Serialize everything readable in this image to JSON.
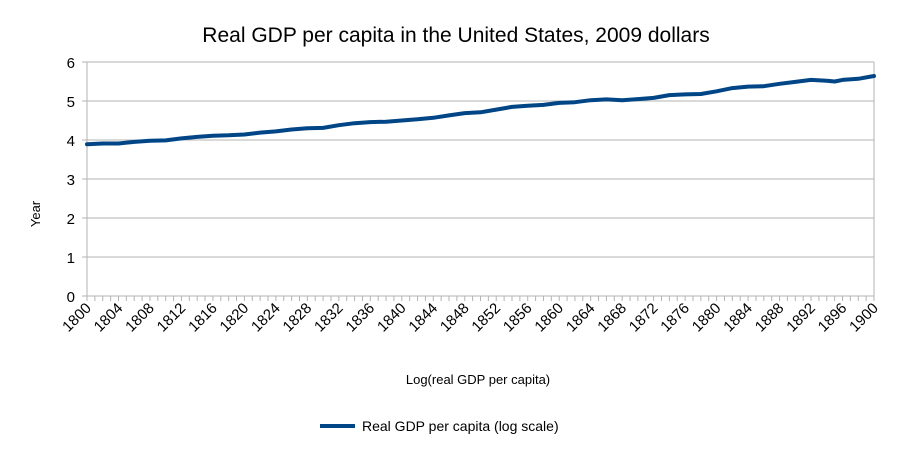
{
  "chart_data": {
    "type": "line",
    "title": "Real GDP per capita in the United States, 2009 dollars",
    "xlabel": "Log(real GDP per capita)",
    "ylabel": "Year",
    "xlim": [
      1800,
      1900
    ],
    "ylim": [
      0,
      6
    ],
    "yticks": [
      "0",
      "1",
      "2",
      "3",
      "4",
      "5",
      "6"
    ],
    "xticks": [
      "1800",
      "1804",
      "1808",
      "1812",
      "1816",
      "1820",
      "1824",
      "1828",
      "1832",
      "1836",
      "1840",
      "1844",
      "1848",
      "1852",
      "1856",
      "1860",
      "1864",
      "1868",
      "1872",
      "1876",
      "1880",
      "1884",
      "1888",
      "1892",
      "1896",
      "1900"
    ],
    "grid": true,
    "legend": "bottom",
    "series": [
      {
        "name": "Real GDP per capita (log scale)",
        "color": "#004586",
        "x": [
          1800,
          1802,
          1804,
          1806,
          1808,
          1810,
          1812,
          1814,
          1816,
          1818,
          1820,
          1822,
          1824,
          1826,
          1828,
          1830,
          1832,
          1834,
          1836,
          1838,
          1840,
          1842,
          1844,
          1846,
          1848,
          1850,
          1852,
          1854,
          1856,
          1858,
          1860,
          1862,
          1864,
          1866,
          1868,
          1870,
          1872,
          1874,
          1876,
          1878,
          1880,
          1882,
          1884,
          1886,
          1888,
          1890,
          1892,
          1894,
          1895,
          1896,
          1898,
          1900
        ],
        "y": [
          3.89,
          3.91,
          3.91,
          3.95,
          3.98,
          3.99,
          4.04,
          4.08,
          4.11,
          4.12,
          4.14,
          4.19,
          4.22,
          4.27,
          4.3,
          4.31,
          4.38,
          4.43,
          4.46,
          4.47,
          4.5,
          4.53,
          4.57,
          4.63,
          4.69,
          4.71,
          4.78,
          4.85,
          4.88,
          4.9,
          4.95,
          4.97,
          5.02,
          5.04,
          5.02,
          5.05,
          5.08,
          5.15,
          5.17,
          5.18,
          5.25,
          5.33,
          5.37,
          5.38,
          5.44,
          5.49,
          5.54,
          5.52,
          5.5,
          5.54,
          5.57,
          5.64
        ]
      }
    ]
  }
}
